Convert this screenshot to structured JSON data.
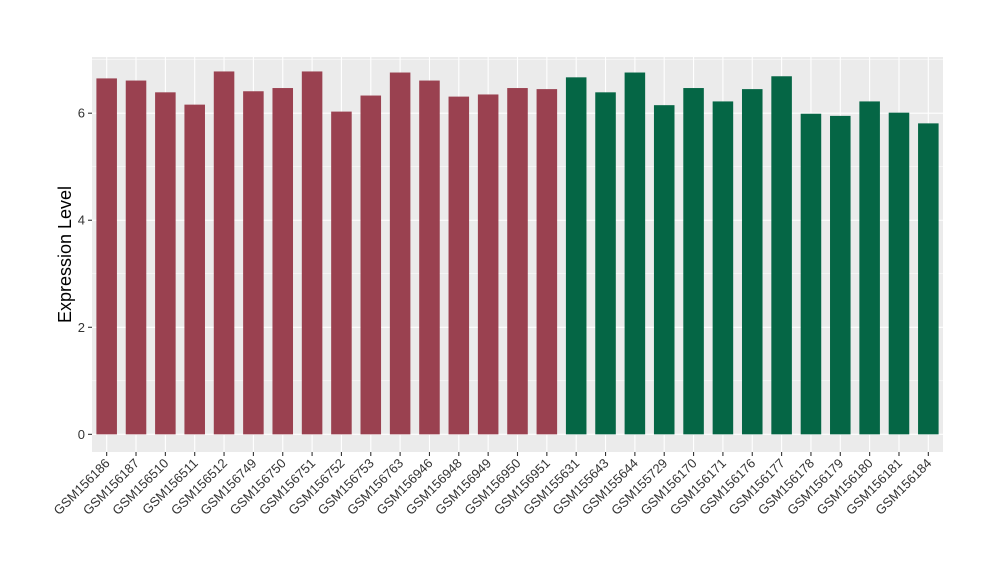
{
  "chart_data": {
    "type": "bar",
    "title": "",
    "xlabel": "",
    "ylabel": "Expression Level",
    "ylim": [
      -0.33,
      7.05
    ],
    "yticks": [
      0,
      2,
      4,
      6
    ],
    "grid": true,
    "legend": "none",
    "categories": [
      "GSM156186",
      "GSM156187",
      "GSM156510",
      "GSM156511",
      "GSM156512",
      "GSM156749",
      "GSM156750",
      "GSM156751",
      "GSM156752",
      "GSM156753",
      "GSM156763",
      "GSM156946",
      "GSM156948",
      "GSM156949",
      "GSM156950",
      "GSM156951",
      "GSM155631",
      "GSM155643",
      "GSM155644",
      "GSM155729",
      "GSM156170",
      "GSM156171",
      "GSM156176",
      "GSM156177",
      "GSM156178",
      "GSM156179",
      "GSM156180",
      "GSM156181",
      "GSM156184"
    ],
    "values": [
      6.65,
      6.61,
      6.39,
      6.16,
      6.78,
      6.41,
      6.47,
      6.78,
      6.03,
      6.33,
      6.76,
      6.61,
      6.31,
      6.35,
      6.47,
      6.45,
      6.67,
      6.39,
      6.76,
      6.15,
      6.47,
      6.22,
      6.45,
      6.69,
      5.99,
      5.95,
      6.22,
      6.01,
      5.81
    ],
    "groups": [
      "a",
      "a",
      "a",
      "a",
      "a",
      "a",
      "a",
      "a",
      "a",
      "a",
      "a",
      "a",
      "a",
      "a",
      "a",
      "a",
      "b",
      "b",
      "b",
      "b",
      "b",
      "b",
      "b",
      "b",
      "b",
      "b",
      "b",
      "b",
      "b"
    ],
    "group_colors": {
      "a": "#9A4150",
      "b": "#056645"
    },
    "panel_color": "#EBEBEB",
    "grid_color": "#FFFFFF"
  }
}
